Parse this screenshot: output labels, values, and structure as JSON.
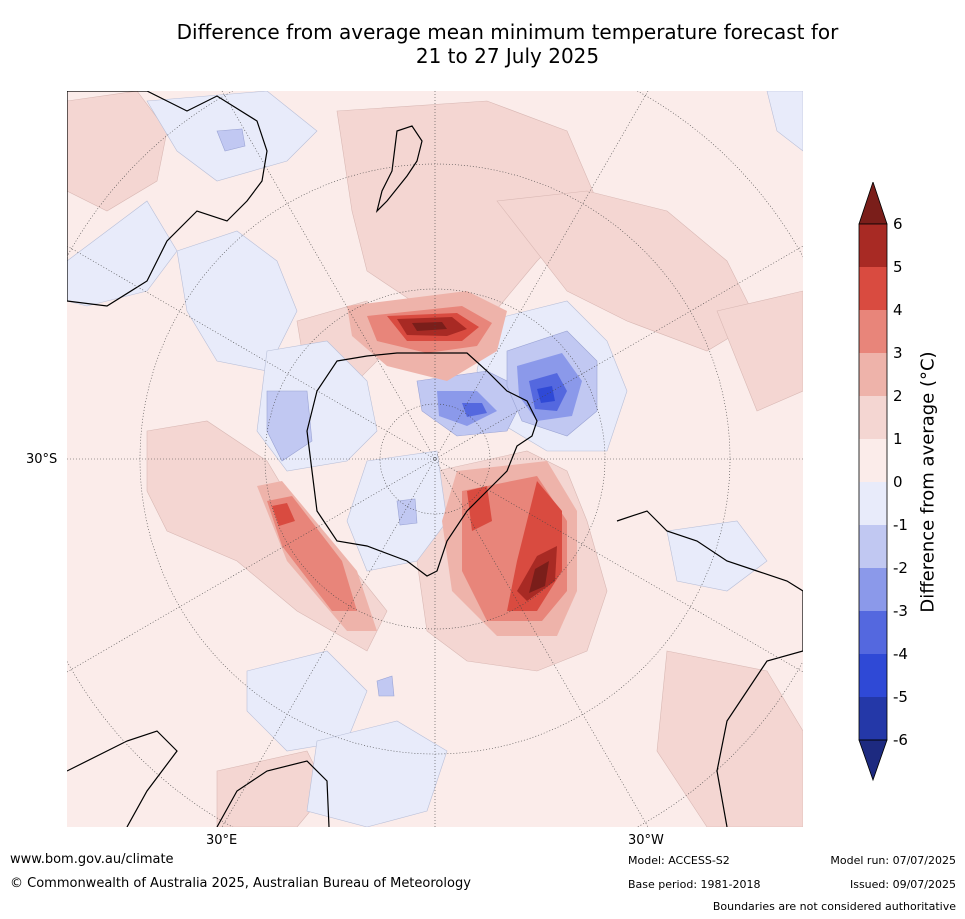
{
  "title_line1": "Difference from average mean minimum temperature forecast for",
  "title_line2": "21 to 27 July 2025",
  "graticule_labels": {
    "lat": "30°S",
    "lon_left": "30°E",
    "lon_right": "30°W"
  },
  "colorbar": {
    "label": "Difference from average (°C)",
    "ticks": [
      "6",
      "5",
      "4",
      "3",
      "2",
      "1",
      "0",
      "-1",
      "-2",
      "-3",
      "-4",
      "-5",
      "-6"
    ],
    "colors": {
      "gt6": "#7a1e1a",
      "5_6": "#a82a24",
      "4_5": "#d94b40",
      "3_4": "#e8857a",
      "2_3": "#eeb3aa",
      "1_2": "#f4d6d2",
      "0_1": "#fbecea",
      "m1_0": "#e8ebfa",
      "m2_m1": "#c1c8f2",
      "m3_m2": "#8b99ea",
      "m4_m3": "#5468df",
      "m5_m4": "#2f49d6",
      "m6_m5": "#2438a8",
      "lt_m6": "#1d2a80"
    }
  },
  "footer": {
    "website": "www.bom.gov.au/climate",
    "copyright": "© Commonwealth of Australia 2025, Australian Bureau of Meteorology",
    "model": "Model: ACCESS-S2",
    "base_period": "Base period: 1981-2018",
    "model_run": "Model run: 07/07/2025",
    "issued": "Issued: 09/07/2025",
    "disclaimer": "Boundaries are not considered authoritative"
  }
}
